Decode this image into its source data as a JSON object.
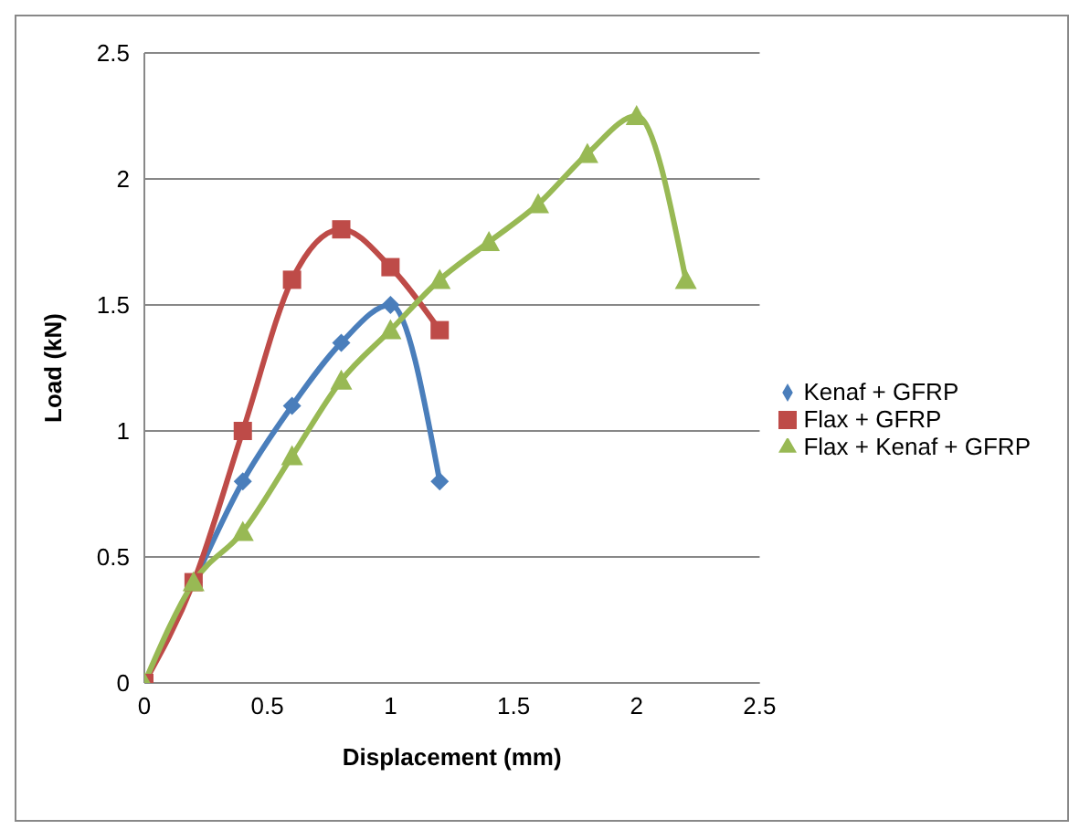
{
  "chart_data": {
    "type": "line",
    "xlabel": "Displacement (mm)",
    "ylabel": "Load (kN)",
    "xlim": [
      0,
      2.5
    ],
    "xticks": [
      0,
      0.5,
      1,
      1.5,
      2,
      2.5
    ],
    "ylim": [
      0,
      2.5
    ],
    "yticks": [
      0,
      0.5,
      1,
      1.5,
      2,
      2.5
    ],
    "grid": "y",
    "legend": "right",
    "series": [
      {
        "name": "Kenaf + GFRP",
        "color": "#4a7ebb",
        "marker": "diamond",
        "x": [
          0,
          0.2,
          0.4,
          0.6,
          0.8,
          1.0,
          1.2
        ],
        "values": [
          0,
          0.4,
          0.8,
          1.1,
          1.35,
          1.5,
          0.8
        ]
      },
      {
        "name": "Flax + GFRP",
        "color": "#be4b48",
        "marker": "square",
        "x": [
          0,
          0.2,
          0.4,
          0.6,
          0.8,
          1.0,
          1.2
        ],
        "values": [
          0,
          0.4,
          1.0,
          1.6,
          1.8,
          1.65,
          1.4
        ]
      },
      {
        "name": "Flax + Kenaf + GFRP",
        "color": "#98b954",
        "marker": "triangle",
        "x": [
          0,
          0.2,
          0.4,
          0.6,
          0.8,
          1.0,
          1.2,
          1.4,
          1.6,
          1.8,
          2.0,
          2.2
        ],
        "values": [
          0,
          0.4,
          0.6,
          0.9,
          1.2,
          1.4,
          1.6,
          1.75,
          1.9,
          2.1,
          2.25,
          1.6
        ]
      }
    ]
  }
}
